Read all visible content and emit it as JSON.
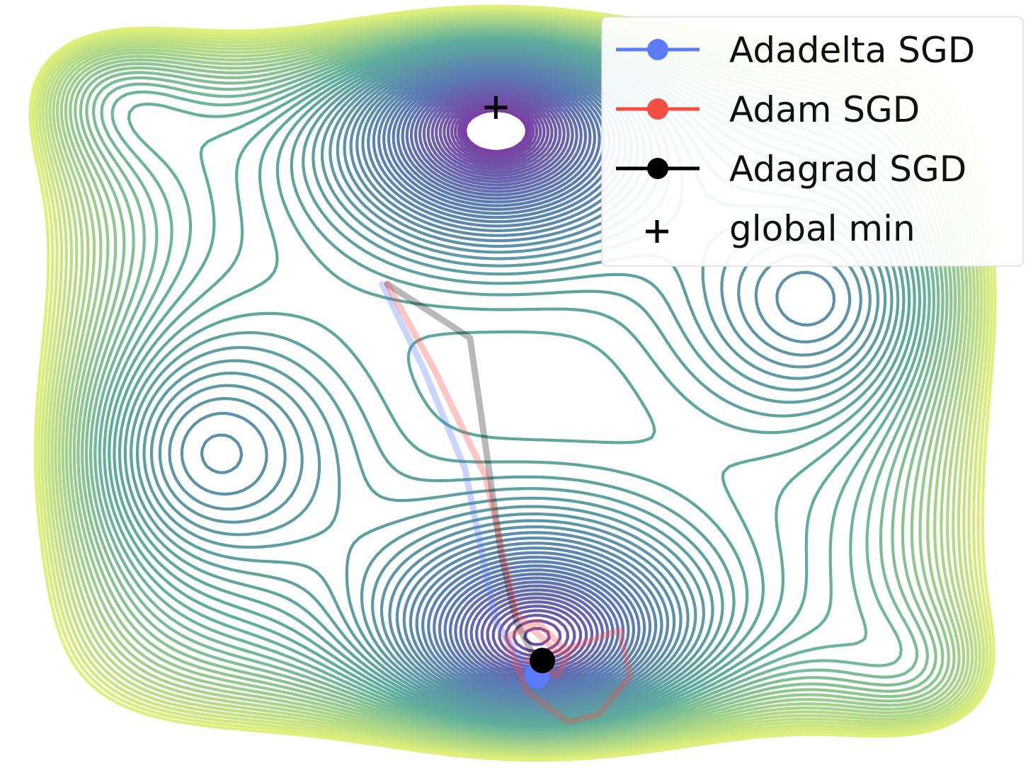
{
  "chart_data": {
    "type": "contour",
    "title": "",
    "xlabel": "",
    "ylabel": "",
    "colormap": [
      "#7b3ea3",
      "#5a7bb4",
      "#5fae9c",
      "#dff07a"
    ],
    "global_min_marker": "+",
    "legend": {
      "placement": "top-right",
      "entries": [
        {
          "label": "Adadelta SGD",
          "color": "#5b7bf8",
          "marker": "circle"
        },
        {
          "label": "Adam SGD",
          "color": "#f24f45",
          "marker": "circle"
        },
        {
          "label": "Adagrad SGD",
          "color": "#000000",
          "marker": "circle"
        },
        {
          "label": "global min",
          "color": "#000000",
          "marker": "plus"
        }
      ]
    },
    "series": [
      {
        "name": "Adadelta SGD",
        "color": "#5b7bf8",
        "x": [
          0.37,
          0.41,
          0.45,
          0.48,
          0.505,
          0.52
        ],
        "y": [
          0.63,
          0.52,
          0.39,
          0.19,
          0.14,
          0.12
        ]
      },
      {
        "name": "Adam SGD",
        "color": "#f24f45",
        "x": [
          0.375,
          0.42,
          0.47,
          0.5,
          0.54,
          0.6,
          0.61,
          0.58,
          0.55,
          0.51,
          0.49,
          0.52,
          0.55,
          0.54,
          0.51
        ],
        "y": [
          0.63,
          0.52,
          0.38,
          0.2,
          0.15,
          0.18,
          0.12,
          0.07,
          0.06,
          0.1,
          0.17,
          0.19,
          0.15,
          0.12,
          0.14
        ]
      },
      {
        "name": "Adagrad SGD",
        "color": "#000000",
        "x": [
          0.375,
          0.455,
          0.47,
          0.485,
          0.5,
          0.515,
          0.525
        ],
        "y": [
          0.63,
          0.56,
          0.42,
          0.28,
          0.19,
          0.15,
          0.14
        ]
      }
    ],
    "global_min": {
      "x": 0.48,
      "y": 0.86
    },
    "endpoints": [
      {
        "name": "Adadelta SGD",
        "x": 0.52,
        "y": 0.12
      },
      {
        "name": "Adagrad SGD",
        "x": 0.525,
        "y": 0.14
      }
    ]
  }
}
